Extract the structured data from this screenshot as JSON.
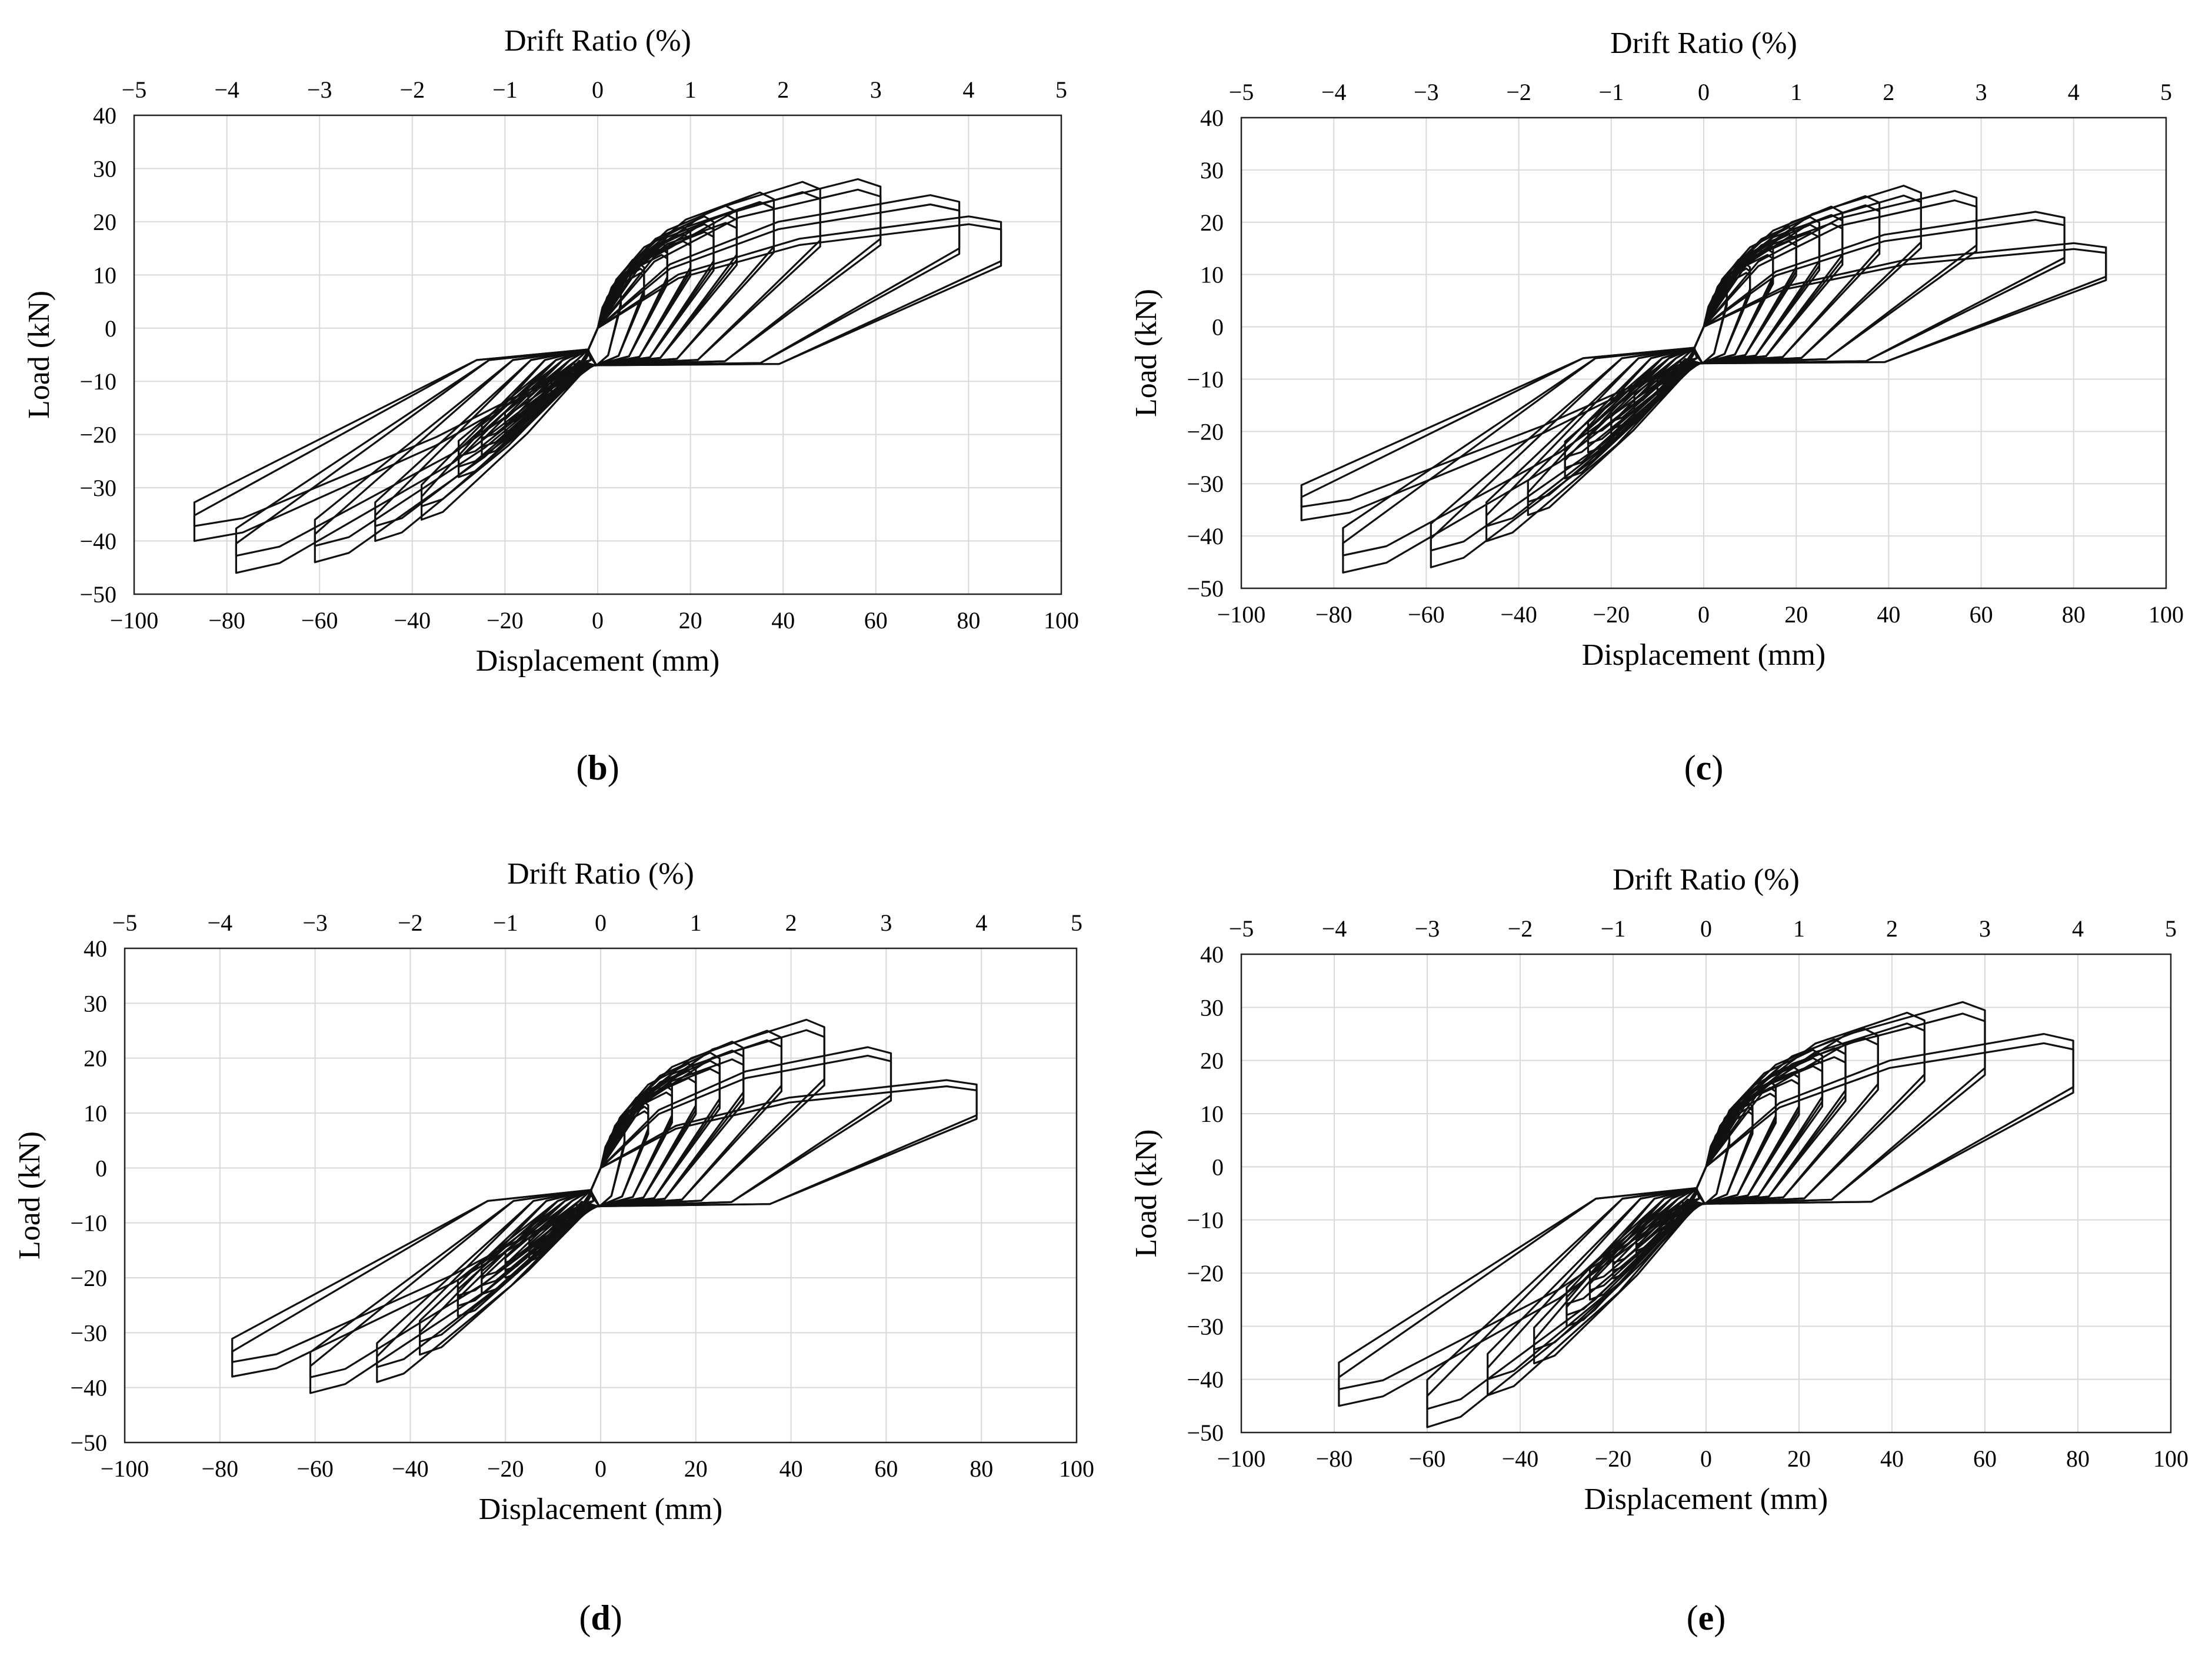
{
  "figure": {
    "panels": [
      {
        "label_open": "(",
        "label": "b",
        "label_close": ")",
        "x_label": "Displacement (mm)",
        "y_label": "Load (kN)",
        "top_label": "Drift Ratio (%)"
      },
      {
        "label_open": "(",
        "label": "c",
        "label_close": ")",
        "x_label": "Displacement (mm)",
        "y_label": "Load (kN)",
        "top_label": "Drift Ratio (%)"
      },
      {
        "label_open": "(",
        "label": "d",
        "label_close": ")",
        "x_label": "Displacement (mm)",
        "y_label": "Load (kN)",
        "top_label": "Drift Ratio (%)"
      },
      {
        "label_open": "(",
        "label": "e",
        "label_close": ")",
        "x_label": "Displacement (mm)",
        "y_label": "Load (kN)",
        "top_label": "Drift Ratio (%)"
      }
    ]
  },
  "chart_data": [
    {
      "type": "line",
      "panel": "b",
      "xlabel": "Displacement (mm)",
      "ylabel": "Load (kN)",
      "secondary_xlabel": "Drift Ratio (%)",
      "xlim": [
        -100,
        100
      ],
      "ylim": [
        -50,
        40
      ],
      "secondary_xlim": [
        -5,
        5
      ],
      "x_ticks": [
        "−100",
        "−80",
        "−60",
        "−40",
        "−20",
        "0",
        "20",
        "40",
        "60",
        "80",
        "100"
      ],
      "y_ticks": [
        "40",
        "30",
        "20",
        "10",
        "0",
        "−10",
        "−20",
        "−30",
        "−40",
        "−50"
      ],
      "secondary_x_ticks": [
        "−5",
        "−4",
        "−3",
        "−2",
        "−1",
        "0",
        "1",
        "2",
        "3",
        "4",
        "5"
      ],
      "grid": true,
      "series_style": "black hysteresis loops",
      "peaks": [
        {
          "x": 5,
          "y_pos": 8,
          "y_neg": -9
        },
        {
          "x": 10,
          "y_pos": 12,
          "y_neg": -13
        },
        {
          "x": 15,
          "y_pos": 16,
          "y_neg": -17
        },
        {
          "x": 20,
          "y_pos": 19,
          "y_neg": -21
        },
        {
          "x": 25,
          "y_pos": 21,
          "y_neg": -24
        },
        {
          "x": 30,
          "y_pos": 23,
          "y_neg": -28
        },
        {
          "x": 38,
          "y_pos": 25.5,
          "y_neg": -36
        },
        {
          "x": 48,
          "y_pos": 27.5,
          "y_neg": -40
        },
        {
          "x": 61,
          "y_pos": 28,
          "y_neg": -44
        },
        {
          "x": 78,
          "y_pos": 25,
          "y_neg": -46
        },
        {
          "x": 87,
          "y_pos": 21,
          "y_neg": -40
        }
      ]
    },
    {
      "type": "line",
      "panel": "c",
      "xlabel": "Displacement (mm)",
      "ylabel": "Load (kN)",
      "secondary_xlabel": "Drift Ratio (%)",
      "xlim": [
        -100,
        100
      ],
      "ylim": [
        -50,
        40
      ],
      "secondary_xlim": [
        -5,
        5
      ],
      "x_ticks": [
        "−100",
        "−80",
        "−60",
        "−40",
        "−20",
        "0",
        "20",
        "40",
        "60",
        "80",
        "100"
      ],
      "y_ticks": [
        "40",
        "30",
        "20",
        "10",
        "0",
        "−10",
        "−20",
        "−30",
        "−40",
        "−50"
      ],
      "secondary_x_ticks": [
        "−5",
        "−4",
        "−3",
        "−2",
        "−1",
        "0",
        "1",
        "2",
        "3",
        "4",
        "5"
      ],
      "grid": true,
      "series_style": "black hysteresis loops",
      "peaks": [
        {
          "x": 5,
          "y_pos": 8,
          "y_neg": -9
        },
        {
          "x": 10,
          "y_pos": 12,
          "y_neg": -13
        },
        {
          "x": 15,
          "y_pos": 16,
          "y_neg": -17
        },
        {
          "x": 20,
          "y_pos": 19,
          "y_neg": -21
        },
        {
          "x": 25,
          "y_pos": 21,
          "y_neg": -24
        },
        {
          "x": 30,
          "y_pos": 23,
          "y_neg": -29
        },
        {
          "x": 38,
          "y_pos": 25,
          "y_neg": -36
        },
        {
          "x": 47,
          "y_pos": 27,
          "y_neg": -41
        },
        {
          "x": 59,
          "y_pos": 26,
          "y_neg": -46
        },
        {
          "x": 78,
          "y_pos": 22,
          "y_neg": -47
        },
        {
          "x": 87,
          "y_pos": 16,
          "y_neg": -37
        }
      ]
    },
    {
      "type": "line",
      "panel": "d",
      "xlabel": "Displacement (mm)",
      "ylabel": "Load (kN)",
      "secondary_xlabel": "Drift Ratio (%)",
      "xlim": [
        -100,
        100
      ],
      "ylim": [
        -50,
        40
      ],
      "secondary_xlim": [
        -5,
        5
      ],
      "x_ticks": [
        "−100",
        "−80",
        "−60",
        "−40",
        "−20",
        "0",
        "20",
        "40",
        "60",
        "80",
        "100"
      ],
      "y_ticks": [
        "40",
        "30",
        "20",
        "10",
        "0",
        "−10",
        "−20",
        "−30",
        "−40",
        "−50"
      ],
      "secondary_x_ticks": [
        "−5",
        "−4",
        "−3",
        "−2",
        "−1",
        "0",
        "1",
        "2",
        "3",
        "4",
        "5"
      ],
      "grid": true,
      "series_style": "black hysteresis loops",
      "peaks": [
        {
          "x": 5,
          "y_pos": 8,
          "y_neg": -9
        },
        {
          "x": 10,
          "y_pos": 12,
          "y_neg": -13
        },
        {
          "x": 15,
          "y_pos": 16,
          "y_neg": -17
        },
        {
          "x": 20,
          "y_pos": 19,
          "y_neg": -20
        },
        {
          "x": 25,
          "y_pos": 21,
          "y_neg": -23
        },
        {
          "x": 30,
          "y_pos": 23,
          "y_neg": -27
        },
        {
          "x": 38,
          "y_pos": 25,
          "y_neg": -34
        },
        {
          "x": 47,
          "y_pos": 27,
          "y_neg": -39
        },
        {
          "x": 61,
          "y_pos": 22,
          "y_neg": -41
        },
        {
          "x": 79,
          "y_pos": 16,
          "y_neg": -38
        }
      ]
    },
    {
      "type": "line",
      "panel": "e",
      "xlabel": "Displacement (mm)",
      "ylabel": "Load (kN)",
      "secondary_xlabel": "Drift Ratio (%)",
      "xlim": [
        -100,
        100
      ],
      "ylim": [
        -50,
        40
      ],
      "secondary_xlim": [
        -5,
        5
      ],
      "x_ticks": [
        "−100",
        "−80",
        "−60",
        "−40",
        "−20",
        "0",
        "20",
        "40",
        "60",
        "80",
        "100"
      ],
      "y_ticks": [
        "40",
        "30",
        "20",
        "10",
        "0",
        "−10",
        "−20",
        "−30",
        "−40",
        "−50"
      ],
      "secondary_x_ticks": [
        "−5",
        "−4",
        "−3",
        "−2",
        "−1",
        "0",
        "1",
        "2",
        "3",
        "4",
        "5"
      ],
      "grid": true,
      "series_style": "black hysteresis loops",
      "peaks": [
        {
          "x": 5,
          "y_pos": 8,
          "y_neg": -9
        },
        {
          "x": 10,
          "y_pos": 12,
          "y_neg": -13
        },
        {
          "x": 15,
          "y_pos": 16,
          "y_neg": -17
        },
        {
          "x": 20,
          "y_pos": 19,
          "y_neg": -21
        },
        {
          "x": 25,
          "y_pos": 22,
          "y_neg": -25
        },
        {
          "x": 30,
          "y_pos": 24,
          "y_neg": -30
        },
        {
          "x": 37,
          "y_pos": 26,
          "y_neg": -37
        },
        {
          "x": 47,
          "y_pos": 29,
          "y_neg": -43
        },
        {
          "x": 60,
          "y_pos": 31,
          "y_neg": -49
        },
        {
          "x": 79,
          "y_pos": 25,
          "y_neg": -45
        }
      ]
    }
  ]
}
